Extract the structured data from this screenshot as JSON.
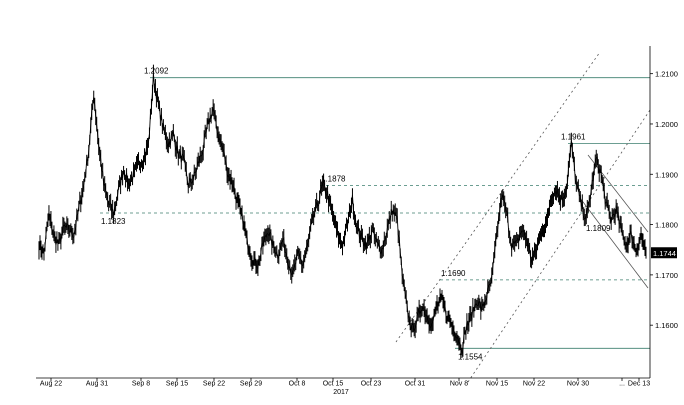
{
  "chart_data": {
    "type": "line",
    "title": "",
    "xlabel": "",
    "ylabel": "",
    "ylim": [
      1.1495,
      1.2155
    ],
    "x_ticks": [
      "Aug 22",
      "Aug 31",
      "Sep 8",
      "Sep 15",
      "Sep 22",
      "Sep 29",
      "Oct 8",
      "Oct 15",
      "Oct 23",
      "Oct 31",
      "Nov 8",
      "Nov 15",
      "Nov 22",
      "Nov 30",
      "...",
      "Dec 13"
    ],
    "x_year_label": "2017",
    "y_ticks": [
      "1.1600",
      "1.1700",
      "1.1800",
      "1.1900",
      "1.2000",
      "1.2100"
    ],
    "last_price": "1.1744",
    "series": [
      {
        "values": [
          1.176,
          1.1745,
          1.182,
          1.1775,
          1.176,
          1.1795,
          1.179,
          1.178,
          1.183,
          1.188,
          1.195,
          1.206,
          1.196,
          1.188,
          1.184,
          1.1823,
          1.187,
          1.191,
          1.188,
          1.19,
          1.192,
          1.193,
          1.196,
          1.2092,
          1.204,
          1.199,
          1.196,
          1.198,
          1.194,
          1.193,
          1.188,
          1.189,
          1.192,
          1.195,
          1.2,
          1.203,
          1.198,
          1.195,
          1.19,
          1.188,
          1.184,
          1.181,
          1.176,
          1.173,
          1.172,
          1.176,
          1.179,
          1.176,
          1.174,
          1.177,
          1.173,
          1.17,
          1.174,
          1.172,
          1.176,
          1.181,
          1.184,
          1.1878,
          1.186,
          1.182,
          1.178,
          1.176,
          1.18,
          1.185,
          1.179,
          1.177,
          1.176,
          1.179,
          1.176,
          1.175,
          1.179,
          1.183,
          1.181,
          1.17,
          1.163,
          1.159,
          1.161,
          1.164,
          1.162,
          1.16,
          1.164,
          1.165,
          1.162,
          1.16,
          1.158,
          1.1554,
          1.16,
          1.162,
          1.165,
          1.163,
          1.166,
          1.169,
          1.178,
          1.186,
          1.182,
          1.176,
          1.176,
          1.179,
          1.177,
          1.173,
          1.175,
          1.179,
          1.18,
          1.186,
          1.187,
          1.185,
          1.187,
          1.1961,
          1.188,
          1.184,
          1.1809,
          1.187,
          1.193,
          1.19,
          1.184,
          1.181,
          1.183,
          1.179,
          1.176,
          1.178,
          1.175,
          1.178,
          1.1744
        ]
      }
    ],
    "annotations": [
      {
        "label": "1.2092",
        "level": 1.2092,
        "style": "solid"
      },
      {
        "label": "1.1961",
        "level": 1.1961,
        "style": "solid"
      },
      {
        "label": "1.1878",
        "level": 1.1878,
        "style": "dashed"
      },
      {
        "label": "1.1823",
        "level": 1.1823,
        "style": "dashed"
      },
      {
        "label": "1.1809",
        "level": 1.1809,
        "style": "none"
      },
      {
        "label": "1.1690",
        "level": 1.169,
        "style": "dashed"
      },
      {
        "label": "1.1554",
        "level": 1.1554,
        "style": "solid"
      }
    ],
    "grid": false,
    "legend": "none"
  }
}
